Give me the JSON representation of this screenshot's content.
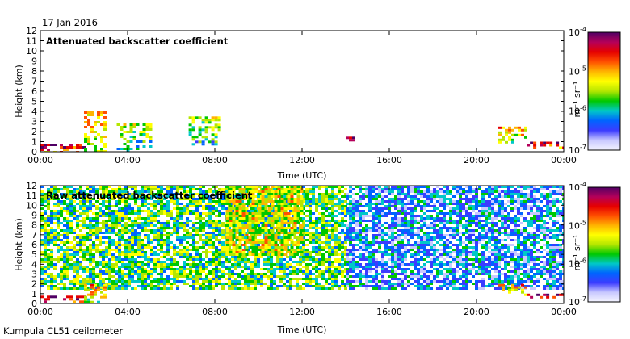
{
  "header": {
    "date": "17 Jan 2016",
    "footer": "Kumpula CL51 ceilometer"
  },
  "colorbar": {
    "label": "m⁻¹ sr⁻¹",
    "tick_labels": [
      "10-4",
      "10-5",
      "10-6",
      "10-7"
    ],
    "colors": [
      "#f4f4ff",
      "#c8c8ff",
      "#3c3cff",
      "#0064ff",
      "#00c8c8",
      "#00c800",
      "#b4e600",
      "#ffff00",
      "#ffb400",
      "#ff5000",
      "#e60000",
      "#b4005a",
      "#500064"
    ]
  },
  "chart_data": [
    {
      "type": "heatmap",
      "title": "Attenuated backscatter coefficient",
      "xlabel": "Time (UTC)",
      "ylabel": "Height (km)",
      "xlim": [
        "00:00",
        "24:00"
      ],
      "ylim": [
        0,
        12
      ],
      "x_tick_labels": [
        "00:00",
        "04:00",
        "08:00",
        "12:00",
        "16:00",
        "20:00",
        "00:00"
      ],
      "y_tick_labels": [
        "0",
        "1",
        "2",
        "3",
        "4",
        "5",
        "6",
        "7",
        "8",
        "9",
        "10",
        "11",
        "12"
      ],
      "color_scale": "log",
      "color_range": [
        1e-07,
        0.0001
      ],
      "features": [
        {
          "hours": [
            0,
            2
          ],
          "height_km": [
            0,
            0.8
          ],
          "level": "high"
        },
        {
          "hours": [
            2,
            3
          ],
          "height_km": [
            0,
            4.0
          ],
          "level": "medium-high"
        },
        {
          "hours": [
            3.5,
            5
          ],
          "height_km": [
            0,
            2.8
          ],
          "level": "medium"
        },
        {
          "hours": [
            6.8,
            8.2
          ],
          "height_km": [
            0.5,
            3.5
          ],
          "level": "medium"
        },
        {
          "hours": [
            14,
            14.5
          ],
          "height_km": [
            1.0,
            1.5
          ],
          "level": "high"
        },
        {
          "hours": [
            21,
            22.3
          ],
          "height_km": [
            1.0,
            2.5
          ],
          "level": "medium-high"
        },
        {
          "hours": [
            22.3,
            24
          ],
          "height_km": [
            0.5,
            1.0
          ],
          "level": "high"
        }
      ]
    },
    {
      "type": "heatmap",
      "title": "Raw attenuated backscatter coefficient",
      "xlabel": "Time (UTC)",
      "ylabel": "Height (km)",
      "xlim": [
        "00:00",
        "24:00"
      ],
      "ylim": [
        0,
        12
      ],
      "x_tick_labels": [
        "00:00",
        "04:00",
        "08:00",
        "12:00",
        "16:00",
        "20:00",
        "00:00"
      ],
      "y_tick_labels": [
        "0",
        "1",
        "2",
        "3",
        "4",
        "5",
        "6",
        "7",
        "8",
        "9",
        "10",
        "11",
        "12"
      ],
      "color_scale": "log",
      "color_range": [
        1e-07,
        0.0001
      ],
      "features": [
        {
          "hours": [
            0,
            14
          ],
          "height_km": [
            1.5,
            12
          ],
          "level": "noise-medium"
        },
        {
          "hours": [
            8.5,
            12
          ],
          "height_km": [
            5,
            12
          ],
          "level": "noise-high"
        },
        {
          "hours": [
            14,
            24
          ],
          "height_km": [
            1.5,
            12
          ],
          "level": "noise-low"
        },
        {
          "hours": [
            0,
            2
          ],
          "height_km": [
            0,
            0.8
          ],
          "level": "high"
        },
        {
          "hours": [
            2,
            3
          ],
          "height_km": [
            0,
            2.0
          ],
          "level": "medium-high"
        },
        {
          "hours": [
            21,
            22.3
          ],
          "height_km": [
            1.0,
            2.0
          ],
          "level": "medium-high"
        },
        {
          "hours": [
            22.3,
            24
          ],
          "height_km": [
            0.5,
            1.0
          ],
          "level": "high"
        }
      ]
    }
  ]
}
